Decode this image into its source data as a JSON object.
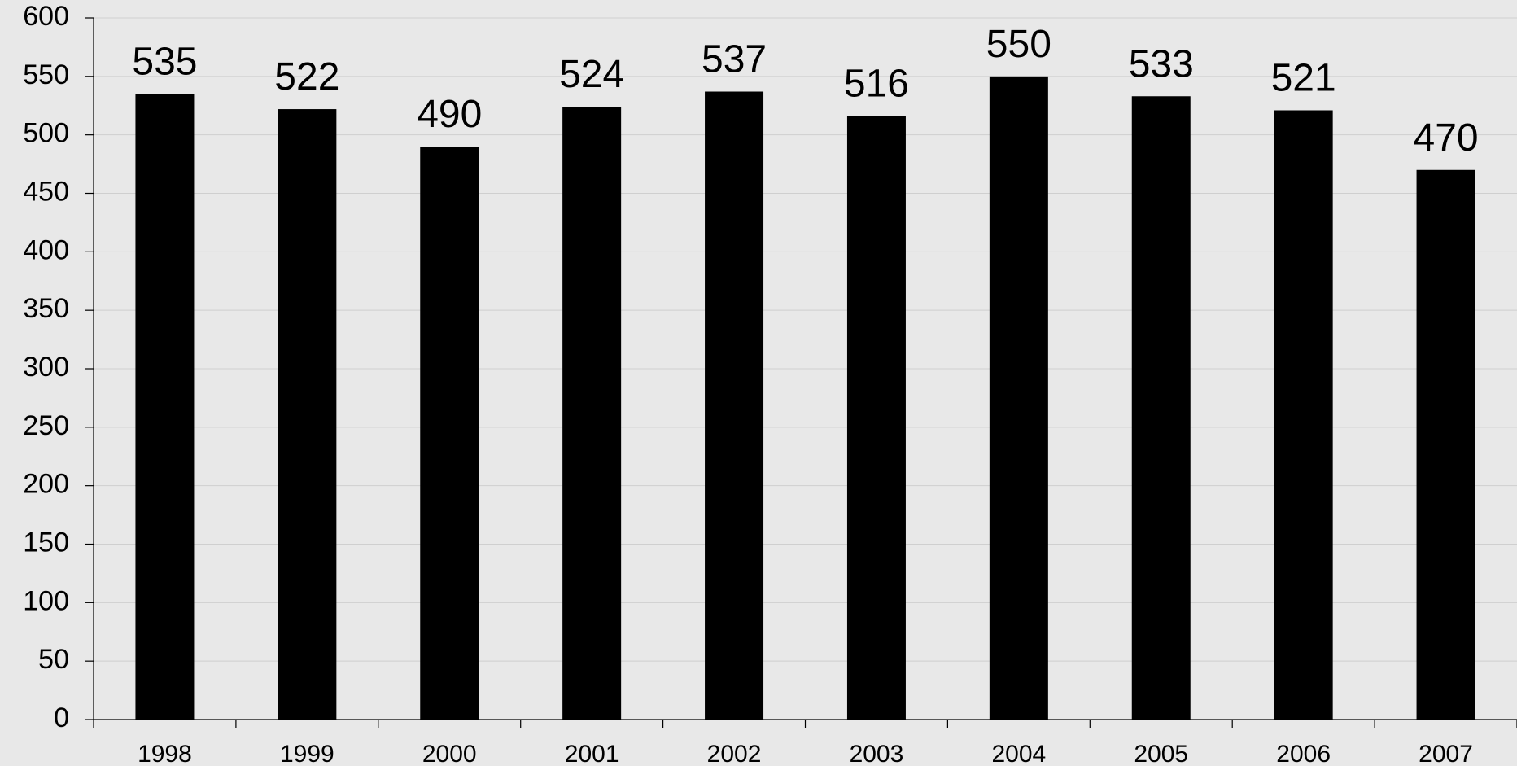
{
  "chart_data": {
    "type": "bar",
    "categories": [
      "1998",
      "1999",
      "2000",
      "2001",
      "2002",
      "2003",
      "2004",
      "2005",
      "2006",
      "2007"
    ],
    "values": [
      535,
      522,
      490,
      524,
      537,
      516,
      550,
      533,
      521,
      470
    ],
    "data_labels": [
      "535",
      "522",
      "490",
      "524",
      "537",
      "516",
      "550",
      "533",
      "521",
      "470"
    ],
    "title": "",
    "xlabel": "",
    "ylabel": "",
    "ylim": [
      0,
      600
    ],
    "y_ticks": [
      0,
      50,
      100,
      150,
      200,
      250,
      300,
      350,
      400,
      450,
      500,
      550,
      600
    ],
    "grid": true,
    "legend": "none",
    "colors": {
      "background": "#e8e8e8",
      "bar": "#000000",
      "grid": "#cfcfcf",
      "axis": "#000000"
    }
  }
}
